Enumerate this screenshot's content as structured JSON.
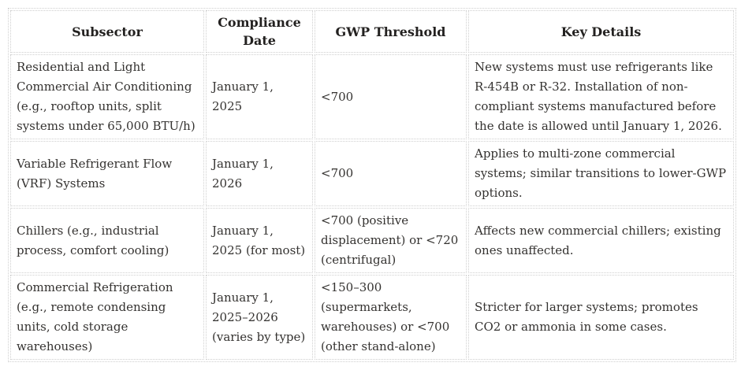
{
  "colors": {
    "text": "#343230",
    "header_text": "#232120",
    "border": "#cfcfcf",
    "cell_bg": "#ffffff",
    "page_bg": "#ffffff"
  },
  "table": {
    "columns": [
      "Subsector",
      "Compliance Date",
      "GWP Threshold",
      "Key Details"
    ],
    "rows": [
      {
        "cells": [
          "Residential and Light Commercial Air Conditioning (e.g., rooftop units, split systems under 65,000 BTU/h)",
          "January 1, 2025",
          "<700",
          "New systems must use refrigerants like R-454B or R-32. Installation of non-compliant systems manufactured before the date is allowed until January 1, 2026."
        ]
      },
      {
        "cells": [
          "Variable Refrigerant Flow (VRF) Systems",
          "January 1, 2026",
          "<700",
          "Applies to multi-zone commercial systems; similar transitions to lower-GWP options."
        ]
      },
      {
        "cells": [
          "Chillers (e.g., industrial process, comfort cooling)",
          "January 1, 2025 (for most)",
          "<700 (positive displacement) or <720 (centrifugal)",
          "Affects new commercial chillers; existing ones unaffected."
        ]
      },
      {
        "cells": [
          "Commercial Refrigeration (e.g., remote condensing units, cold storage warehouses)",
          "January 1, 2025–2026 (varies by type)",
          "<150–300 (supermarkets, warehouses) or <700 (other stand-alone)",
          "Stricter for larger systems; promotes CO2 or ammonia in some cases."
        ]
      }
    ]
  }
}
